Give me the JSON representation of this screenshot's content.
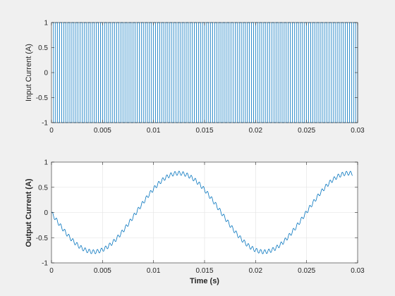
{
  "chart_data": [
    {
      "type": "line",
      "title": "",
      "xlabel": "",
      "ylabel": "Input Current (A)",
      "xlim": [
        0,
        0.03
      ],
      "ylim": [
        -1,
        1
      ],
      "xticks": [
        0,
        0.005,
        0.01,
        0.015,
        0.02,
        0.025,
        0.03
      ],
      "xtick_labels": [
        "0",
        "0.005",
        "0.01",
        "0.015",
        "0.02",
        "0.025",
        "0.03"
      ],
      "yticks": [
        -1,
        -0.5,
        0,
        0.5,
        1
      ],
      "ytick_labels": [
        "-1",
        "-0.5",
        "0",
        "0.5",
        "1"
      ],
      "grid": false,
      "ylabel_bold": false,
      "color": "#0072BD",
      "series": [
        {
          "description": "square wave switching between -1 and 1",
          "low": -1,
          "high": 1,
          "frequency_hz": 2500,
          "x_start": 0,
          "x_end": 0.03
        }
      ]
    },
    {
      "type": "line",
      "title": "",
      "xlabel": "Time (s)",
      "ylabel": "Output Current (A)",
      "xlim": [
        0,
        0.03
      ],
      "ylim": [
        -1,
        1
      ],
      "xticks": [
        0,
        0.005,
        0.01,
        0.015,
        0.02,
        0.025,
        0.03
      ],
      "xtick_labels": [
        "0",
        "0.005",
        "0.01",
        "0.015",
        "0.02",
        "0.025",
        "0.03"
      ],
      "yticks": [
        -1,
        -0.5,
        0,
        0.5,
        1
      ],
      "ytick_labels": [
        "-1",
        "-0.5",
        "0",
        "0.5",
        "1"
      ],
      "grid": true,
      "ylabel_bold": true,
      "color": "#0072BD",
      "series": [
        {
          "description": "sinusoid with switching ripple",
          "amplitude": 0.78,
          "frequency_hz": 60,
          "phase_shift_s": 0.0083,
          "start_value": 0.05,
          "ripple_amplitude": 0.04,
          "ripple_frequency_hz": 2500,
          "x_start": 0,
          "x_end": 0.0295
        }
      ]
    }
  ]
}
